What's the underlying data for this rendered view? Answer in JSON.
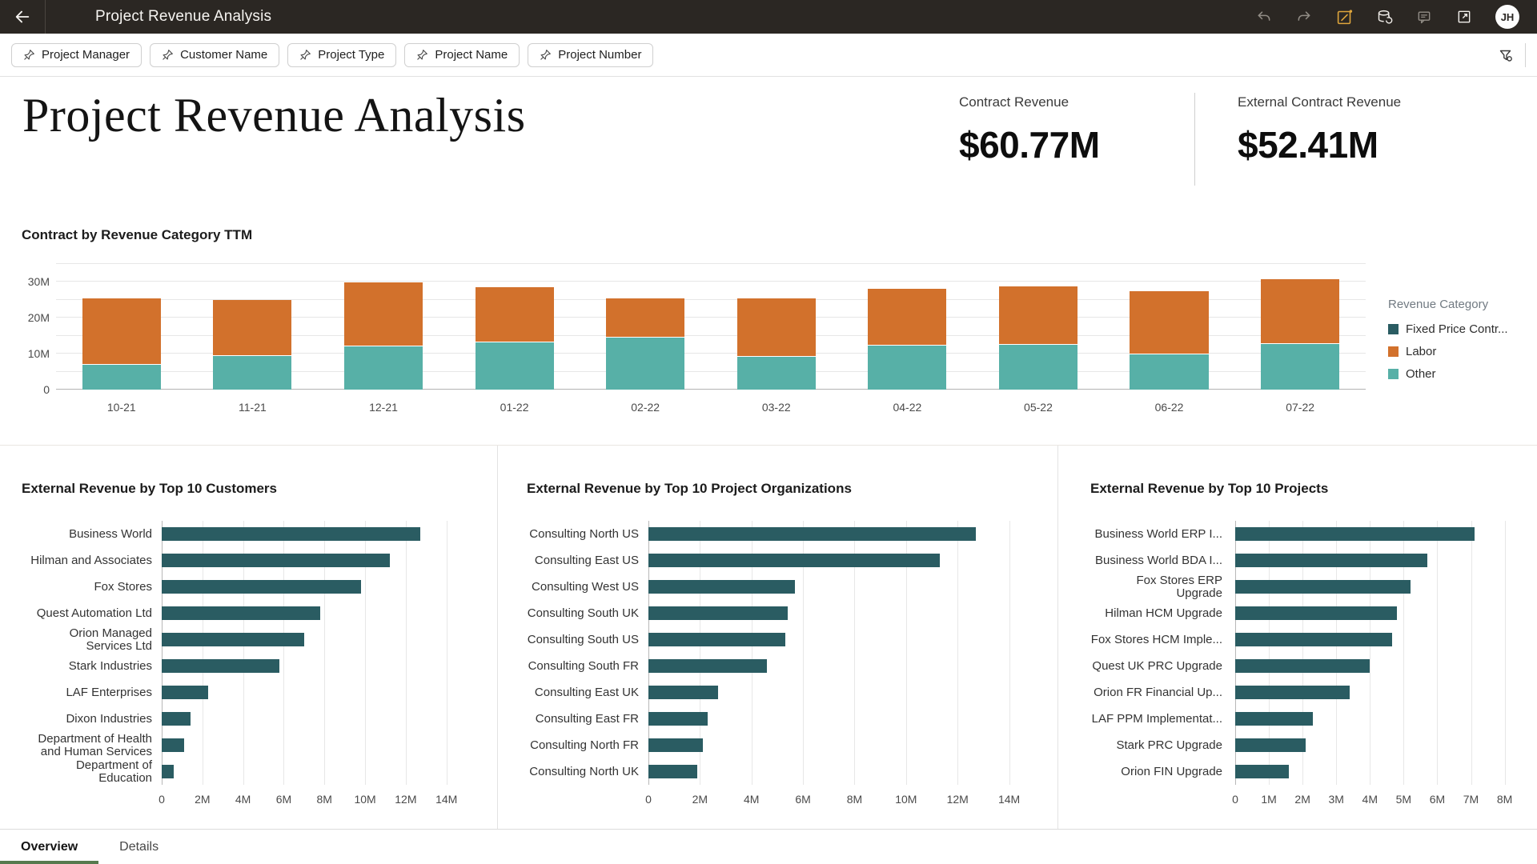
{
  "header": {
    "title": "Project Revenue Analysis",
    "icons": [
      "undo-icon",
      "redo-icon",
      "edit-icon",
      "data-refresh-icon",
      "comment-icon",
      "open-in-new-icon"
    ],
    "avatar_initials": "JH"
  },
  "filter_bar": {
    "pills": [
      "Project Manager",
      "Customer Name",
      "Project Type",
      "Project Name",
      "Project Number"
    ],
    "filter_icon": "funnel-icon"
  },
  "summary": {
    "title": "Project Revenue Analysis",
    "kpis": [
      {
        "label": "Contract Revenue",
        "value": "$60.77M"
      },
      {
        "label": "External Contract Revenue",
        "value": "$52.41M"
      }
    ]
  },
  "colors": {
    "fixed_price": "#2a5c62",
    "labor": "#d2712c",
    "other": "#57b0a7",
    "hbar": "#2a5c62",
    "tab_accent": "#567a4e",
    "header_bg": "#2b2723",
    "edit_icon_gold": "#dfa63c"
  },
  "chart_data": [
    {
      "type": "bar",
      "stacked": true,
      "title": "Contract by Revenue Category TTM",
      "categories": [
        "10-21",
        "11-21",
        "12-21",
        "01-22",
        "02-22",
        "03-22",
        "04-22",
        "05-22",
        "06-22",
        "07-22"
      ],
      "series": [
        {
          "name": "Fixed Price Contr...",
          "color": "#2a5c62",
          "values": [
            0,
            0,
            0,
            0,
            0,
            0,
            0,
            0,
            0,
            0
          ]
        },
        {
          "name": "Labor",
          "color": "#d2712c",
          "values": [
            18.3,
            15.3,
            17.6,
            15.2,
            10.7,
            16.0,
            15.6,
            16.0,
            17.3,
            17.8
          ]
        },
        {
          "name": "Other",
          "color": "#57b0a7",
          "values": [
            7.1,
            9.7,
            12.3,
            13.4,
            14.7,
            9.4,
            12.5,
            12.7,
            10.1,
            13.0
          ]
        }
      ],
      "unit": "M",
      "ylim": [
        0,
        35
      ],
      "ytick_values": [
        0,
        10,
        20,
        30
      ],
      "ytick_labels": [
        "0",
        "10M",
        "20M",
        "30M"
      ],
      "gridline_values": [
        5,
        10,
        15,
        20,
        25,
        30,
        35
      ],
      "grid": true,
      "legend_title": "Revenue Category",
      "legend_position": "right"
    },
    {
      "type": "bar",
      "orientation": "horizontal",
      "title": "External Revenue by Top 10 Customers",
      "categories": [
        "Business World",
        "Hilman and Associates",
        "Fox Stores",
        "Quest Automation Ltd",
        "Orion Managed Services Ltd",
        "Stark Industries",
        "LAF Enterprises",
        "Dixon Industries",
        "Department of Health and Human Services",
        "Department of Education"
      ],
      "values": [
        12.7,
        11.2,
        9.8,
        7.8,
        7.0,
        5.8,
        2.3,
        1.4,
        1.1,
        0.6
      ],
      "unit": "M",
      "xlim": [
        0,
        15.35
      ],
      "xtick_values": [
        0,
        2,
        4,
        6,
        8,
        10,
        12,
        14
      ],
      "xtick_labels": [
        "0",
        "2M",
        "4M",
        "6M",
        "8M",
        "10M",
        "12M",
        "14M"
      ],
      "grid": true
    },
    {
      "type": "bar",
      "orientation": "horizontal",
      "title": "External Revenue by Top 10 Project Organizations",
      "categories": [
        "Consulting North US",
        "Consulting East US",
        "Consulting West US",
        "Consulting South UK",
        "Consulting South US",
        "Consulting South FR",
        "Consulting East UK",
        "Consulting East FR",
        "Consulting North FR",
        "Consulting North UK"
      ],
      "values": [
        12.7,
        11.3,
        5.7,
        5.4,
        5.3,
        4.6,
        2.7,
        2.3,
        2.1,
        1.9
      ],
      "unit": "M",
      "xlim": [
        0,
        15.1
      ],
      "xtick_values": [
        0,
        2,
        4,
        6,
        8,
        10,
        12,
        14
      ],
      "xtick_labels": [
        "0",
        "2M",
        "4M",
        "6M",
        "8M",
        "10M",
        "12M",
        "14M"
      ],
      "grid": true
    },
    {
      "type": "bar",
      "orientation": "horizontal",
      "title": "External Revenue by Top 10 Projects",
      "categories": [
        "Business World ERP I...",
        "Business World BDA I...",
        "Fox Stores ERP Upgrade",
        "Hilman HCM Upgrade",
        "Fox Stores HCM Imple...",
        "Quest UK PRC Upgrade",
        "Orion FR Financial Up...",
        "LAF PPM Implementat...",
        "Stark PRC Upgrade",
        "Orion FIN Upgrade"
      ],
      "values": [
        7.1,
        5.7,
        5.2,
        4.8,
        4.65,
        4.0,
        3.4,
        2.3,
        2.1,
        1.6
      ],
      "unit": "M",
      "xlim": [
        0,
        8.2
      ],
      "xtick_values": [
        0,
        1,
        2,
        3,
        4,
        5,
        6,
        7,
        8
      ],
      "xtick_labels": [
        "0",
        "1M",
        "2M",
        "3M",
        "4M",
        "5M",
        "6M",
        "7M",
        "8M"
      ],
      "grid": true
    }
  ],
  "tabs": [
    {
      "label": "Overview",
      "active": true
    },
    {
      "label": "Details",
      "active": false
    }
  ]
}
